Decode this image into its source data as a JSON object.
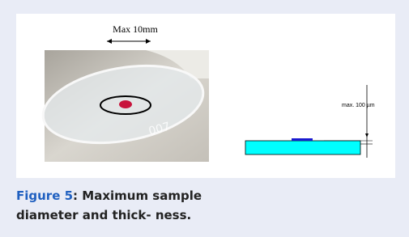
{
  "figure": {
    "image": {
      "photo_label": "Max 10mm",
      "engraving": "007",
      "diagram_label": "max. 100 µm"
    },
    "caption": {
      "label": "Figure 5",
      "separator": ":",
      "text": "Maximum sample diameter and thick- ness."
    }
  }
}
